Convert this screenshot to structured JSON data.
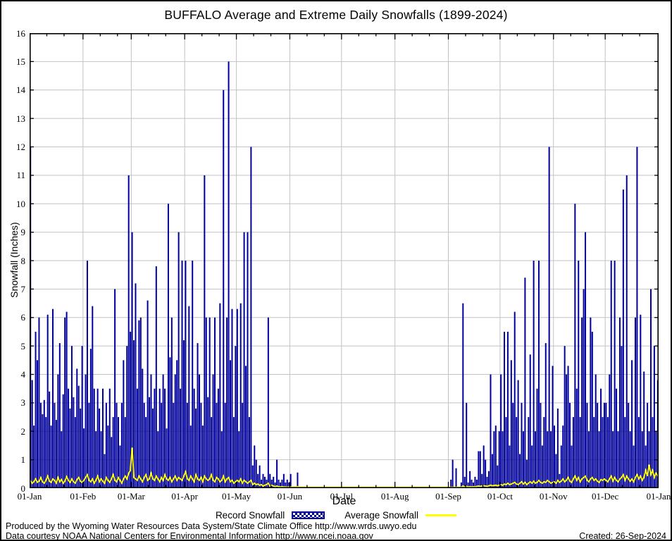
{
  "title": "BUFFALO Average and Extreme Daily Snowfalls (1899-2024)",
  "axes": {
    "xlabel": "Date",
    "ylabel": "Snowfall (Inches)"
  },
  "legend": {
    "record_label": "Record Snowfall",
    "average_label": "Average Snowfall"
  },
  "footer": {
    "produced_by": "Produced by the Wyoming Water Resources Data System/State Climate Office http://www.wrds.uwyo.edu",
    "data_courtesy": "Data courtesy NOAA National Centers for Environmental Information http://www.ncei.noaa.gov",
    "created": "Created: 26-Sep-2024"
  },
  "colors": {
    "record_bar": "#00009a",
    "average_line": "#ffff00",
    "gridline": "#c2c2c2",
    "axis": "#000000",
    "background": "#ffffff"
  },
  "chart_data": {
    "type": "bar",
    "title": "BUFFALO Average and Extreme Daily Snowfalls (1899-2024)",
    "xlabel": "Date",
    "ylabel": "Snowfall (Inches)",
    "ylim": [
      0,
      16
    ],
    "y_tick_interval": 1,
    "grid": true,
    "legend_position": "bottom",
    "x_tick_labels": [
      "01-Jan",
      "01-Feb",
      "01-Mar",
      "01-Apr",
      "01-May",
      "01-Jun",
      "01-Jul",
      "01-Aug",
      "01-Sep",
      "01-Oct",
      "01-Nov",
      "01-Dec",
      "01-Jan"
    ],
    "month_day_offsets": [
      0,
      31,
      59,
      90,
      120,
      151,
      181,
      212,
      243,
      273,
      304,
      334,
      365
    ],
    "series": [
      {
        "name": "Record Snowfall",
        "type": "bar",
        "color": "#00009a",
        "values": [
          12,
          3.8,
          2.2,
          5.5,
          4.5,
          6,
          3,
          2.6,
          3.1,
          2.5,
          6.1,
          3.4,
          2.2,
          6.3,
          3,
          2.4,
          4,
          5.1,
          2,
          3.3,
          6,
          6.2,
          3.5,
          2.8,
          5,
          3.2,
          2.5,
          4.2,
          3.6,
          2.8,
          5,
          2.1,
          4,
          8,
          3,
          4.9,
          6.4,
          3.5,
          2,
          3.5,
          2.8,
          2,
          3.5,
          1.2,
          3,
          2.2,
          3.5,
          1.8,
          2.5,
          7,
          3,
          2.5,
          1.5,
          3,
          4.5,
          2.5,
          5,
          11,
          5.5,
          9,
          5.2,
          7.2,
          3.5,
          5.9,
          6,
          4.2,
          3,
          2.5,
          6.6,
          3.2,
          4,
          2.8,
          3.5,
          7.8,
          2,
          3.5,
          3,
          4,
          3.5,
          2.1,
          10,
          4.6,
          6,
          3,
          4,
          4.5,
          9,
          3.5,
          8,
          5.2,
          8,
          3,
          6.4,
          2.2,
          8,
          3.5,
          2.8,
          5.1,
          4,
          3,
          2.2,
          11,
          6,
          3.2,
          6,
          2.5,
          4,
          6,
          3,
          3.5,
          6.5,
          2,
          14,
          3,
          6,
          15,
          4.5,
          6.3,
          2.5,
          5,
          6.3,
          2,
          6.5,
          3,
          9,
          4.3,
          9,
          2.5,
          12,
          0.8,
          1.5,
          1,
          0.5,
          0.8,
          0.3,
          0.5,
          0.4,
          0.3,
          6,
          0.5,
          0.3,
          0.4,
          0.2,
          1,
          0.3,
          0.2,
          0.3,
          0.5,
          0.2,
          0.3,
          0.2,
          0.5,
          0,
          0,
          0,
          0.55,
          0,
          0,
          0,
          0,
          0,
          0,
          0,
          0,
          0,
          0,
          0,
          0,
          0,
          0,
          0,
          0,
          0,
          0,
          0,
          0,
          0,
          0,
          0,
          0,
          0,
          0,
          0,
          0,
          0,
          0,
          0,
          0,
          0,
          0,
          0,
          0,
          0,
          0,
          0,
          0,
          0,
          0,
          0,
          0,
          0,
          0,
          0,
          0,
          0,
          0,
          0,
          0,
          0,
          0,
          0,
          0,
          0,
          0,
          0,
          0,
          0,
          0,
          0,
          0,
          0,
          0,
          0,
          0,
          0,
          0,
          0,
          0,
          0,
          0,
          0,
          0,
          0,
          0,
          0,
          0,
          0,
          0,
          0,
          0,
          0,
          0,
          0,
          0,
          0.3,
          1,
          0,
          0.7,
          0,
          0,
          0.2,
          6.5,
          0.4,
          3,
          0.2,
          0.6,
          0.3,
          0.2,
          0.4,
          0.3,
          1.3,
          1.3,
          0.5,
          1.5,
          1,
          0.4,
          0.6,
          4,
          1.2,
          2,
          2.2,
          0.8,
          2,
          4,
          2,
          5.5,
          2.5,
          5.5,
          1.5,
          4.5,
          3,
          6.2,
          2.5,
          3.8,
          1.2,
          3,
          2,
          7.4,
          1,
          2.5,
          4.7,
          1.5,
          8,
          2,
          3.5,
          8,
          3,
          1.5,
          2.5,
          5.1,
          2,
          12,
          2,
          4.3,
          2.2,
          1.2,
          2.8,
          0.5,
          1.5,
          2.2,
          5,
          4,
          4.3,
          3,
          1.5,
          2.5,
          10,
          3.5,
          8,
          2.5,
          6,
          7,
          9,
          3,
          2,
          6,
          5.5,
          2.5,
          4,
          3,
          2,
          3.5,
          2.5,
          3,
          3,
          2.5,
          4,
          8,
          2,
          8,
          3.5,
          2,
          6,
          5,
          10.5,
          2.5,
          11,
          3,
          2,
          4.5,
          1.5,
          6,
          12,
          2.5,
          6.1,
          2,
          4.1,
          1.5,
          3,
          2,
          7,
          2.5,
          5,
          2,
          3.8
        ]
      },
      {
        "name": "Average Snowfall",
        "type": "line",
        "color": "#ffff00",
        "values": [
          0.25,
          0.15,
          0.2,
          0.3,
          0.18,
          0.22,
          0.35,
          0.2,
          0.15,
          0.25,
          0.4,
          0.22,
          0.18,
          0.3,
          0.25,
          0.15,
          0.35,
          0.2,
          0.28,
          0.15,
          0.22,
          0.38,
          0.25,
          0.18,
          0.3,
          0.2,
          0.15,
          0.28,
          0.35,
          0.22,
          0.18,
          0.25,
          0.35,
          0.45,
          0.25,
          0.2,
          0.3,
          0.15,
          0.25,
          0.4,
          0.2,
          0.3,
          0.22,
          0.15,
          0.35,
          0.25,
          0.18,
          0.3,
          0.45,
          0.25,
          0.2,
          0.35,
          0.25,
          0.15,
          0.3,
          0.4,
          0.3,
          0.5,
          0.6,
          1.4,
          0.35,
          0.3,
          0.25,
          0.4,
          0.3,
          0.2,
          0.35,
          0.45,
          0.25,
          0.3,
          0.5,
          0.3,
          0.25,
          0.4,
          0.3,
          0.2,
          0.35,
          0.25,
          0.45,
          0.3,
          0.25,
          0.35,
          0.2,
          0.3,
          0.4,
          0.25,
          0.35,
          0.3,
          0.25,
          0.4,
          0.55,
          0.3,
          0.25,
          0.4,
          0.3,
          0.2,
          0.45,
          0.3,
          0.25,
          0.35,
          0.2,
          0.4,
          0.3,
          0.25,
          0.3,
          0.45,
          0.25,
          0.2,
          0.35,
          0.3,
          0.2,
          0.25,
          0.4,
          0.2,
          0.3,
          0.35,
          0.2,
          0.25,
          0.15,
          0.2,
          0.25,
          0.2,
          0.3,
          0.15,
          0.25,
          0.2,
          0.15,
          0.2,
          0.25,
          0.1,
          0.15,
          0.1,
          0.12,
          0.08,
          0.1,
          0.05,
          0.08,
          0.1,
          0.15,
          0.05,
          0.08,
          0.05,
          0.03,
          0.05,
          0.03,
          0.02,
          0.03,
          0.02,
          0.02,
          0.01,
          0.02,
          0.02,
          0.01,
          0.01,
          0.02,
          0.03,
          0.01,
          0,
          0,
          0.01,
          0,
          0,
          0,
          0,
          0,
          0,
          0,
          0,
          0,
          0,
          0,
          0,
          0,
          0,
          0,
          0,
          0,
          0,
          0,
          0,
          0,
          0,
          0,
          0,
          0,
          0,
          0,
          0,
          0,
          0,
          0,
          0,
          0,
          0,
          0,
          0,
          0,
          0,
          0,
          0,
          0,
          0,
          0,
          0,
          0,
          0,
          0,
          0,
          0,
          0,
          0,
          0,
          0,
          0,
          0,
          0,
          0,
          0,
          0,
          0,
          0,
          0,
          0,
          0,
          0,
          0,
          0,
          0,
          0,
          0,
          0,
          0,
          0,
          0,
          0,
          0,
          0,
          0,
          0,
          0,
          0,
          0,
          0,
          0,
          0,
          0,
          0,
          0,
          0,
          0,
          0.01,
          0.05,
          0.02,
          0.04,
          0.02,
          0.03,
          0.02,
          0.03,
          0.02,
          0.04,
          0.05,
          0.04,
          0.05,
          0.06,
          0.05,
          0.04,
          0.06,
          0.08,
          0.06,
          0.07,
          0.08,
          0.06,
          0.08,
          0.1,
          0.08,
          0.12,
          0.1,
          0.15,
          0.1,
          0.12,
          0.15,
          0.18,
          0.12,
          0.1,
          0.15,
          0.2,
          0.12,
          0.18,
          0.1,
          0.15,
          0.2,
          0.15,
          0.22,
          0.15,
          0.18,
          0.25,
          0.18,
          0.15,
          0.2,
          0.18,
          0.25,
          0.2,
          0.15,
          0.18,
          0.2,
          0.15,
          0.25,
          0.18,
          0.22,
          0.3,
          0.2,
          0.25,
          0.35,
          0.22,
          0.18,
          0.3,
          0.4,
          0.25,
          0.35,
          0.2,
          0.3,
          0.35,
          0.4,
          0.25,
          0.2,
          0.3,
          0.35,
          0.25,
          0.3,
          0.22,
          0.18,
          0.28,
          0.25,
          0.3,
          0.25,
          0.2,
          0.3,
          0.4,
          0.22,
          0.35,
          0.25,
          0.2,
          0.3,
          0.35,
          0.45,
          0.25,
          0.4,
          0.3,
          0.22,
          0.3,
          0.2,
          0.35,
          0.45,
          0.3,
          0.4,
          0.25,
          0.35,
          0.6,
          0.4,
          0.8,
          0.45,
          0.6,
          0.35,
          0.5,
          0.4
        ]
      }
    ]
  }
}
